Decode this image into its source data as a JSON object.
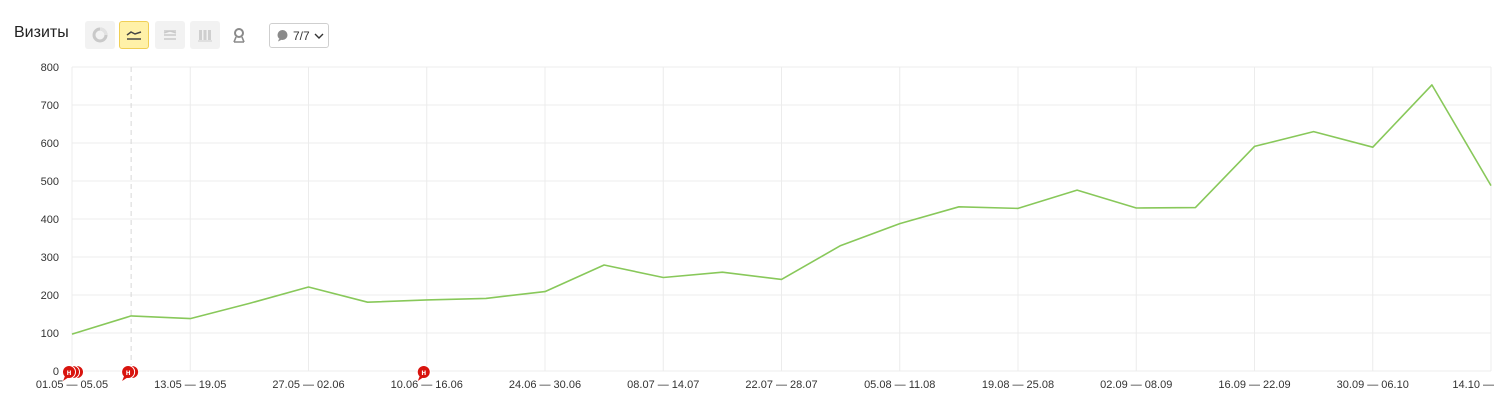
{
  "toolbar": {
    "title": "Визиты",
    "buttons": [
      {
        "icon": "pie-chart-icon",
        "state": "inactive"
      },
      {
        "icon": "line-chart-icon",
        "state": "active"
      },
      {
        "icon": "area-chart-icon",
        "state": "inactive"
      },
      {
        "icon": "bar-chart-icon",
        "state": "inactive"
      },
      {
        "icon": "map-pin-icon",
        "state": "inactive"
      }
    ],
    "notes_count": "7/7"
  },
  "colors": {
    "line": "#88c85a",
    "note_marker": "#d8140e",
    "grid": "#ececec",
    "active_button_bg": "#fff1a8",
    "active_button_border": "#f0cf55"
  },
  "chart_data": {
    "type": "line",
    "title": "",
    "ylim": [
      0,
      800
    ],
    "yticks": [
      0,
      100,
      200,
      300,
      400,
      500,
      600,
      700,
      800
    ],
    "x_tick_labels": [
      "01.05 — 05.05",
      "13.05 — 19.05",
      "27.05 — 02.06",
      "10.06 — 16.06",
      "24.06 — 30.06",
      "08.07 — 14.07",
      "22.07 — 28.07",
      "05.08 — 11.08",
      "19.08 — 25.08",
      "02.09 — 08.09",
      "16.09 — 22.09",
      "30.09 — 06.10",
      "14.10 —"
    ],
    "series": [
      {
        "values": [
          97,
          145,
          138,
          178,
          221,
          181,
          187,
          191,
          209,
          279,
          246,
          260,
          241,
          330,
          388,
          432,
          428,
          476,
          429,
          430,
          591,
          630,
          589,
          753,
          488
        ]
      }
    ],
    "notes": [
      {
        "index": 0,
        "count": 3,
        "label": "н"
      },
      {
        "index": 1,
        "count": 2,
        "label": "н"
      },
      {
        "index": 6,
        "count": 1,
        "label": "н"
      }
    ]
  }
}
